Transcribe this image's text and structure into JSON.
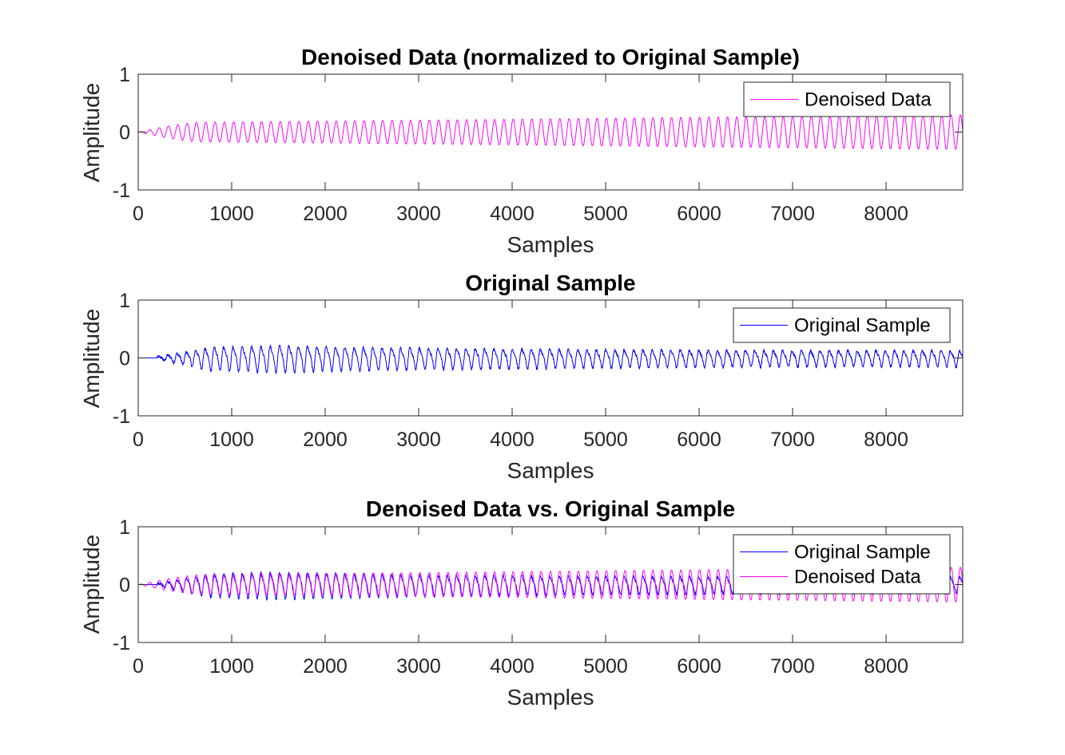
{
  "chart_data": [
    {
      "type": "line",
      "title": "Denoised Data (normalized to Original Sample)",
      "xlabel": "Samples",
      "ylabel": "Amplitude",
      "xlim": [
        0,
        8820
      ],
      "ylim": [
        -1,
        1
      ],
      "xticks": [
        0,
        1000,
        2000,
        3000,
        4000,
        5000,
        6000,
        7000,
        8000
      ],
      "yticks": [
        -1,
        0,
        1
      ],
      "xtick_labels": [
        "0",
        "1000",
        "2000",
        "3000",
        "4000",
        "5000",
        "6000",
        "7000",
        "8000"
      ],
      "ytick_labels": [
        "-1",
        "0",
        "1"
      ],
      "grid": false,
      "legend_position": "top-right",
      "series": [
        {
          "name": "Denoised Data",
          "color": "#ff00ff",
          "waveform": {
            "cycles": 88.5,
            "onset": 0,
            "phase": 0
          },
          "envelope": [
            [
              0,
              0
            ],
            [
              300,
              0.1
            ],
            [
              600,
              0.17
            ],
            [
              2000,
              0.19
            ],
            [
              5000,
              0.24
            ],
            [
              8000,
              0.29
            ],
            [
              8820,
              0.3
            ]
          ]
        }
      ]
    },
    {
      "type": "line",
      "title": "Original Sample",
      "xlabel": "Samples",
      "ylabel": "Amplitude",
      "xlim": [
        0,
        8820
      ],
      "ylim": [
        -1,
        1
      ],
      "xticks": [
        0,
        1000,
        2000,
        3000,
        4000,
        5000,
        6000,
        7000,
        8000
      ],
      "yticks": [
        -1,
        0,
        1
      ],
      "xtick_labels": [
        "0",
        "1000",
        "2000",
        "3000",
        "4000",
        "5000",
        "6000",
        "7000",
        "8000"
      ],
      "ytick_labels": [
        "-1",
        "0",
        "1"
      ],
      "grid": false,
      "legend_position": "top-right",
      "series": [
        {
          "name": "Original Sample",
          "color": "#0000ff",
          "waveform": {
            "cycles": 88.5,
            "onset": 200,
            "phase": 0,
            "harmonic": 0.3,
            "noise": 0.025
          },
          "envelope": [
            [
              0,
              0
            ],
            [
              200,
              0.02
            ],
            [
              500,
              0.12
            ],
            [
              800,
              0.22
            ],
            [
              1500,
              0.25
            ],
            [
              2000,
              0.23
            ],
            [
              3000,
              0.2
            ],
            [
              5000,
              0.17
            ],
            [
              7000,
              0.15
            ],
            [
              8820,
              0.15
            ]
          ]
        }
      ]
    },
    {
      "type": "line",
      "title": "Denoised Data vs. Original Sample",
      "xlabel": "Samples",
      "ylabel": "Amplitude",
      "xlim": [
        0,
        8820
      ],
      "ylim": [
        -1,
        1
      ],
      "xticks": [
        0,
        1000,
        2000,
        3000,
        4000,
        5000,
        6000,
        7000,
        8000
      ],
      "yticks": [
        -1,
        0,
        1
      ],
      "xtick_labels": [
        "0",
        "1000",
        "2000",
        "3000",
        "4000",
        "5000",
        "6000",
        "7000",
        "8000"
      ],
      "ytick_labels": [
        "-1",
        "0",
        "1"
      ],
      "grid": false,
      "legend_position": "top-right",
      "series": [
        {
          "name": "Original Sample",
          "color": "#0000ff",
          "waveform": {
            "cycles": 88.5,
            "onset": 200,
            "phase": 0,
            "harmonic": 0.3,
            "noise": 0.025
          },
          "envelope": [
            [
              0,
              0
            ],
            [
              200,
              0.02
            ],
            [
              500,
              0.12
            ],
            [
              800,
              0.22
            ],
            [
              1500,
              0.25
            ],
            [
              2000,
              0.23
            ],
            [
              3000,
              0.2
            ],
            [
              5000,
              0.17
            ],
            [
              7000,
              0.15
            ],
            [
              8820,
              0.15
            ]
          ]
        },
        {
          "name": "Denoised Data",
          "color": "#ff00ff",
          "waveform": {
            "cycles": 88.5,
            "onset": 0,
            "phase": 0
          },
          "envelope": [
            [
              0,
              0
            ],
            [
              300,
              0.1
            ],
            [
              600,
              0.17
            ],
            [
              2000,
              0.19
            ],
            [
              5000,
              0.24
            ],
            [
              8000,
              0.29
            ],
            [
              8820,
              0.3
            ]
          ]
        }
      ]
    }
  ]
}
